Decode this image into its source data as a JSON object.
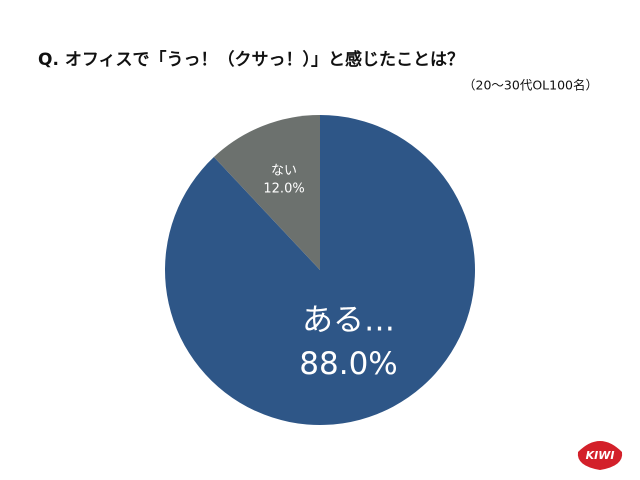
{
  "chart_data": {
    "type": "pie",
    "title": "Q. オフィスで「うっ！（クサっ！）」と感じたことは？",
    "subtitle": "（20〜30代OL100名）",
    "categories": [
      "ある…",
      "ない"
    ],
    "values": [
      88.0,
      12.0
    ],
    "value_labels": [
      "88.0%",
      "12.0%"
    ],
    "colors": [
      "#2e5687",
      "#6c716e"
    ]
  },
  "brand_logo": "KIWI"
}
